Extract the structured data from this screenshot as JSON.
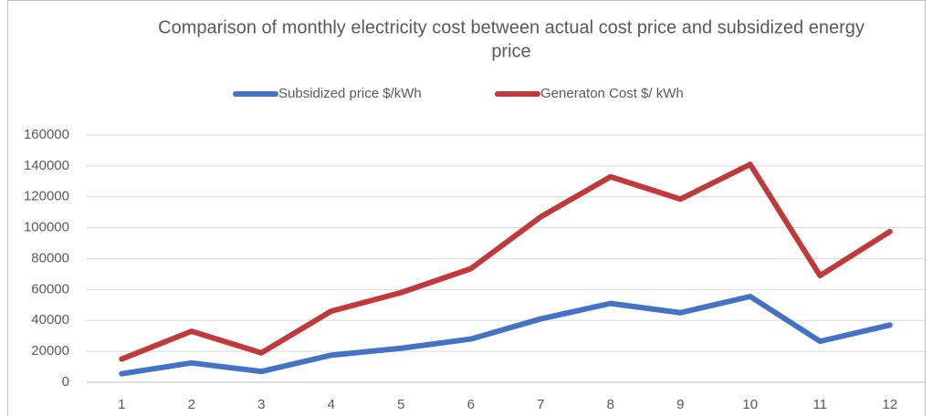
{
  "chart_data": {
    "type": "line",
    "title": "Comparison of monthly electricity cost between actual cost price and subsidized energy",
    "title_line_2": "price",
    "categories": [
      "1",
      "2",
      "3",
      "4",
      "5",
      "6",
      "7",
      "8",
      "9",
      "10",
      "11",
      "12"
    ],
    "series": [
      {
        "name": "Subsidized  price $/kWh",
        "color": "#4472c4",
        "values": [
          5500,
          12500,
          7000,
          17500,
          22000,
          28000,
          41000,
          51000,
          45000,
          55500,
          26500,
          37000
        ]
      },
      {
        "name": "Generaton Cost $/ kWh",
        "color": "#c0393b",
        "values": [
          15000,
          33000,
          19000,
          46000,
          58000,
          73500,
          107000,
          133000,
          118500,
          141000,
          69000,
          97500
        ]
      }
    ],
    "ylim": [
      0,
      160000
    ],
    "yticks": [
      0,
      20000,
      40000,
      60000,
      80000,
      100000,
      120000,
      140000,
      160000
    ],
    "grid": true,
    "legend": "top"
  }
}
